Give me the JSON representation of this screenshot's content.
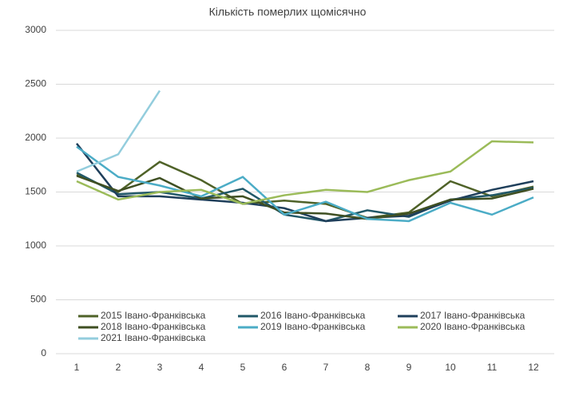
{
  "chart_data": {
    "type": "line",
    "title": "Кількість померлих щомісячно",
    "x": [
      1,
      2,
      3,
      4,
      5,
      6,
      7,
      8,
      9,
      10,
      11,
      12
    ],
    "xlim": [
      1,
      12
    ],
    "xticks": [
      1,
      2,
      3,
      4,
      5,
      6,
      7,
      8,
      9,
      10,
      11,
      12
    ],
    "ylim": [
      0,
      3000
    ],
    "yticks": [
      0,
      500,
      1000,
      1500,
      2000,
      2500,
      3000
    ],
    "grid": true,
    "legend": "bottom",
    "series": [
      {
        "name": "2015 Івано-Франківська",
        "color": "#4f6228",
        "values": [
          1660,
          1500,
          1780,
          1610,
          1390,
          1420,
          1390,
          1260,
          1310,
          1600,
          1460,
          1550
        ]
      },
      {
        "name": "2016 Івано-Франківська",
        "color": "#215868",
        "values": [
          1680,
          1480,
          1500,
          1440,
          1530,
          1290,
          1230,
          1330,
          1270,
          1430,
          1470,
          1540
        ]
      },
      {
        "name": "2017 Івано-Франківська",
        "color": "#1f3f5b",
        "values": [
          1950,
          1460,
          1460,
          1430,
          1400,
          1350,
          1230,
          1260,
          1280,
          1420,
          1520,
          1600
        ]
      },
      {
        "name": "2018 Івано-Франківська",
        "color": "#3f4f22",
        "values": [
          1650,
          1510,
          1630,
          1440,
          1460,
          1310,
          1300,
          1250,
          1300,
          1430,
          1440,
          1530
        ]
      },
      {
        "name": "2019 Івано-Франківська",
        "color": "#4bacc6",
        "values": [
          1920,
          1640,
          1560,
          1460,
          1640,
          1290,
          1410,
          1250,
          1230,
          1400,
          1290,
          1450
        ]
      },
      {
        "name": "2020 Івано-Франківська",
        "color": "#9bbb59",
        "values": [
          1600,
          1430,
          1500,
          1520,
          1390,
          1470,
          1520,
          1500,
          1610,
          1690,
          1970,
          1960
        ]
      },
      {
        "name": "2021 Івано-Франківська",
        "color": "#93cddd",
        "values": [
          1690,
          1850,
          2440,
          null,
          null,
          null,
          null,
          null,
          null,
          null,
          null,
          null
        ]
      }
    ]
  }
}
